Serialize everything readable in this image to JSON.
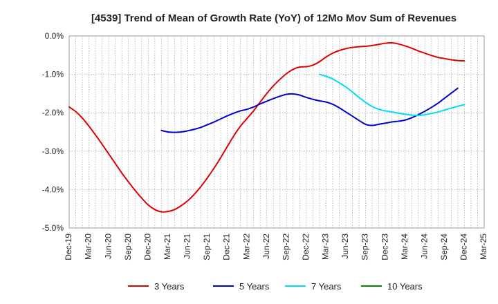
{
  "chart_data": {
    "type": "line",
    "title": "[4539]  Trend of Mean of Growth Rate (YoY) of 12Mo Mov Sum of Revenues",
    "xlabel": "",
    "ylabel": "",
    "ylim": [
      -5.0,
      0.0
    ],
    "y_ticks": [
      0.0,
      -1.0,
      -2.0,
      -3.0,
      -4.0,
      -5.0
    ],
    "y_tick_labels": [
      "0.0%",
      "-1.0%",
      "-2.0%",
      "-3.0%",
      "-4.0%",
      "-5.0%"
    ],
    "x_ticks": [
      "Dec-19",
      "Mar-20",
      "Jun-20",
      "Sep-20",
      "Dec-20",
      "Mar-21",
      "Jun-21",
      "Sep-21",
      "Dec-21",
      "Mar-22",
      "Jun-22",
      "Sep-22",
      "Dec-22",
      "Mar-23",
      "Jun-23",
      "Sep-23",
      "Dec-23",
      "Mar-24",
      "Jun-24",
      "Sep-24",
      "Dec-24",
      "Mar-25"
    ],
    "grid": true,
    "legend_position": "bottom",
    "series": [
      {
        "name": "3 Years",
        "color": "#dd0000",
        "start_month_index": 0,
        "values": [
          -1.85,
          -1.97,
          -2.14,
          -2.35,
          -2.58,
          -2.82,
          -3.07,
          -3.32,
          -3.57,
          -3.8,
          -4.02,
          -4.22,
          -4.4,
          -4.52,
          -4.58,
          -4.57,
          -4.52,
          -4.42,
          -4.29,
          -4.12,
          -3.92,
          -3.69,
          -3.44,
          -3.17,
          -2.88,
          -2.6,
          -2.35,
          -2.15,
          -1.95,
          -1.72,
          -1.5,
          -1.3,
          -1.13,
          -0.98,
          -0.87,
          -0.81,
          -0.8,
          -0.76,
          -0.67,
          -0.55,
          -0.45,
          -0.38,
          -0.33,
          -0.3,
          -0.28,
          -0.27,
          -0.25,
          -0.22,
          -0.19,
          -0.18,
          -0.21,
          -0.26,
          -0.32,
          -0.39,
          -0.45,
          -0.51,
          -0.56,
          -0.59,
          -0.62,
          -0.64,
          -0.65
        ]
      },
      {
        "name": "5 Years",
        "color": "#0000cc",
        "start_month_index": 14,
        "values": [
          -2.46,
          -2.5,
          -2.51,
          -2.5,
          -2.47,
          -2.43,
          -2.38,
          -2.31,
          -2.24,
          -2.16,
          -2.08,
          -2.01,
          -1.95,
          -1.91,
          -1.85,
          -1.77,
          -1.7,
          -1.63,
          -1.57,
          -1.52,
          -1.51,
          -1.54,
          -1.6,
          -1.65,
          -1.69,
          -1.72,
          -1.78,
          -1.87,
          -1.98,
          -2.09,
          -2.2,
          -2.3,
          -2.33,
          -2.3,
          -2.27,
          -2.24,
          -2.22,
          -2.19,
          -2.13,
          -2.05,
          -1.96,
          -1.86,
          -1.75,
          -1.62,
          -1.49,
          -1.36
        ]
      },
      {
        "name": "7 Years",
        "color": "#00ddee",
        "start_month_index": 38,
        "values": [
          -1.0,
          -1.05,
          -1.12,
          -1.22,
          -1.33,
          -1.46,
          -1.6,
          -1.73,
          -1.84,
          -1.91,
          -1.95,
          -1.98,
          -2.01,
          -2.04,
          -2.06,
          -2.07,
          -2.05,
          -2.02,
          -1.98,
          -1.93,
          -1.88,
          -1.83,
          -1.79
        ]
      },
      {
        "name": "10 Years",
        "color": "#008800",
        "start_month_index": 0,
        "values": []
      }
    ]
  }
}
